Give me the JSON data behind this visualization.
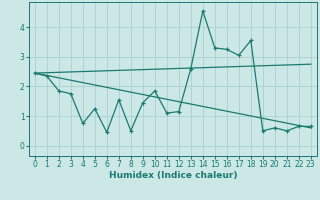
{
  "title": "",
  "xlabel": "Humidex (Indice chaleur)",
  "background_color": "#cce8e6",
  "grid_color": "#aacfcc",
  "line_color": "#1a7a6e",
  "xlim": [
    -0.5,
    23.5
  ],
  "ylim": [
    -0.35,
    4.85
  ],
  "yticks": [
    0,
    1,
    2,
    3,
    4
  ],
  "xticks": [
    0,
    1,
    2,
    3,
    4,
    5,
    6,
    7,
    8,
    9,
    10,
    11,
    12,
    13,
    14,
    15,
    16,
    17,
    18,
    19,
    20,
    21,
    22,
    23
  ],
  "data_x": [
    0,
    1,
    2,
    3,
    4,
    5,
    6,
    7,
    8,
    9,
    10,
    11,
    12,
    13,
    14,
    15,
    16,
    17,
    18,
    19,
    20,
    21,
    22,
    23
  ],
  "data_y": [
    2.45,
    2.35,
    1.85,
    1.75,
    0.75,
    1.25,
    0.45,
    1.55,
    0.5,
    1.45,
    1.85,
    1.1,
    1.15,
    2.6,
    4.55,
    3.3,
    3.25,
    3.05,
    3.55,
    0.5,
    0.6,
    0.5,
    0.65,
    0.65
  ],
  "trend1_x": [
    0,
    23
  ],
  "trend1_y": [
    2.45,
    2.75
  ],
  "trend2_x": [
    0,
    23
  ],
  "trend2_y": [
    2.45,
    0.6
  ],
  "figsize": [
    3.2,
    2.0
  ],
  "dpi": 100,
  "label_fontsize": 6.5,
  "tick_fontsize": 5.5
}
